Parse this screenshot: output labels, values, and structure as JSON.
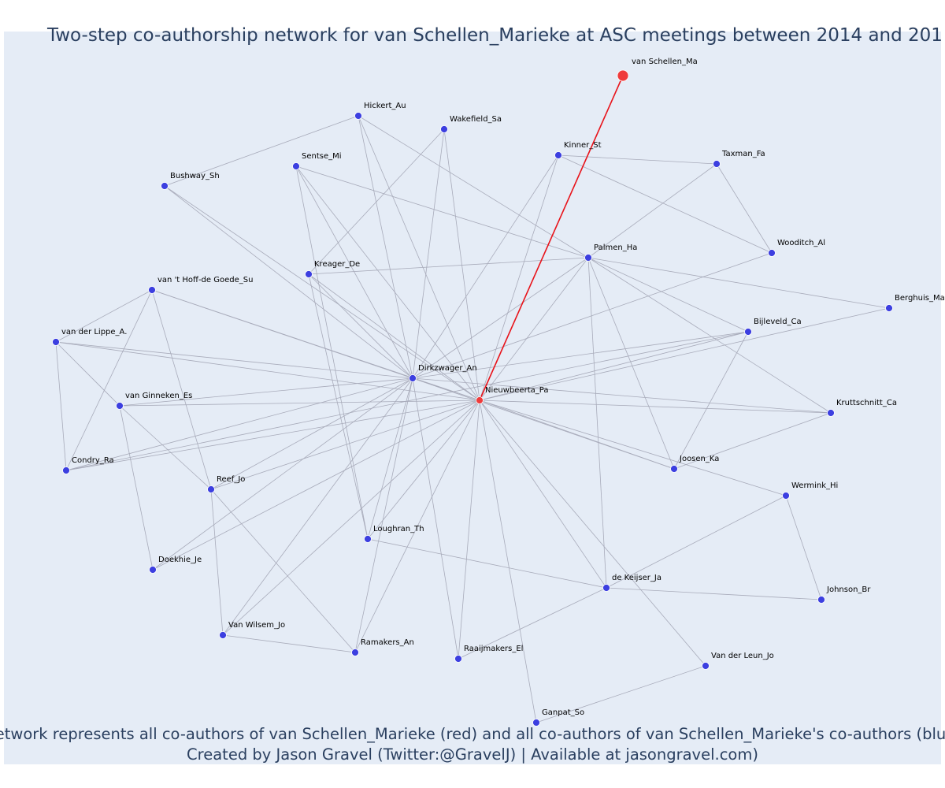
{
  "title": "Two-step co-authorship network for van Schellen_Marieke at ASC meetings between 2014 and 201",
  "nodes": [
    {
      "label": "van Schellen_Ma"
    },
    {
      "label": "Hickert_Au"
    },
    {
      "label": "Wakefield_Sa"
    },
    {
      "label": "Kinner_St"
    },
    {
      "label": "Taxman_Fa"
    },
    {
      "label": "Sentse_Mi"
    },
    {
      "label": "Bushway_Sh"
    },
    {
      "label": "Wooditch_Al"
    },
    {
      "label": "Palmen_Ha"
    },
    {
      "label": "Kreager_De"
    },
    {
      "label": "van 't Hoff-de Goede_Su"
    },
    {
      "label": "Berghuis_Ma"
    },
    {
      "label": "Bijleveld_Ca"
    },
    {
      "label": "van der Lippe_A."
    },
    {
      "label": "Dirkzwager_An"
    },
    {
      "label": "Nieuwbeerta_Pa"
    },
    {
      "label": "van Ginneken_Es"
    },
    {
      "label": "Kruttschnitt_Ca"
    },
    {
      "label": "Condry_Ra"
    },
    {
      "label": "Joosen_Ka"
    },
    {
      "label": "Reef_Jo"
    },
    {
      "label": "Wermink_Hi"
    },
    {
      "label": "Loughran_Th"
    },
    {
      "label": "Doekhie_Je"
    },
    {
      "label": "de Keijser_Ja"
    },
    {
      "label": "Johnson_Br"
    },
    {
      "label": "Van Wilsem_Jo"
    },
    {
      "label": "Ramakers_An"
    },
    {
      "label": "Raaijmakers_El"
    },
    {
      "label": "Van der Leun_Jo"
    },
    {
      "label": "Ganpat_So"
    }
  ],
  "footer": {
    "line1": "Network represents all co-authors of van Schellen_Marieke (red) and all co-authors of van Schellen_Marieke's co-authors (blue)",
    "line2": "Created by Jason Gravel (Twitter:@GravelJ) | Available at jasongravel.com)"
  }
}
